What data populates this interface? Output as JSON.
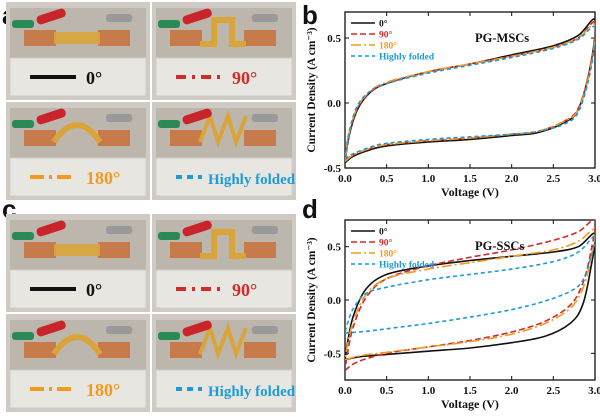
{
  "panels": {
    "a": {
      "letter": "a",
      "photo_labels": [
        "0°",
        "90°",
        "180°",
        "Highly folded"
      ]
    },
    "b": {
      "letter": "b"
    },
    "c": {
      "letter": "c",
      "photo_labels": [
        "0°",
        "90°",
        "180°",
        "Highly folded"
      ]
    },
    "d": {
      "letter": "d"
    }
  },
  "legend_colors": {
    "0°": "#111111",
    "90°": "#d22b2b",
    "180°": "#f29a1e",
    "Highly folded": "#1e9bd7"
  },
  "photo_colors": {
    "stand": "#e8e6e1",
    "copper": "#c77b4a",
    "polyimide": "#d9a53a",
    "clip_red": "#c8242a",
    "clip_green": "#2a8a56",
    "bg": "#cfcac3"
  },
  "chart_data": [
    {
      "type": "line",
      "panel": "b",
      "title": "PG-MSCs",
      "xlabel": "Voltage (V)",
      "ylabel": "Current Density (A cm⁻³)",
      "xlim": [
        0.0,
        3.0
      ],
      "ylim": [
        -0.5,
        0.7
      ],
      "xticks": [
        "0.0",
        "0.5",
        "1.0",
        "1.5",
        "2.0",
        "2.5",
        "3.0"
      ],
      "yticks": [
        "-0.5",
        "0.0",
        "0.5"
      ],
      "legend_position": "top-left",
      "series": [
        {
          "name": "0°",
          "color": "#111111",
          "dash": "solid",
          "forward": [
            [
              0.0,
              -0.46
            ],
            [
              0.1,
              -0.41
            ],
            [
              0.3,
              -0.36
            ],
            [
              0.5,
              -0.33
            ],
            [
              1.0,
              -0.3
            ],
            [
              1.5,
              -0.28
            ],
            [
              2.0,
              -0.25
            ],
            [
              2.3,
              -0.23
            ],
            [
              2.6,
              -0.16
            ],
            [
              2.8,
              -0.05
            ],
            [
              2.95,
              0.3
            ],
            [
              3.0,
              0.64
            ]
          ],
          "reverse": [
            [
              3.0,
              0.64
            ],
            [
              2.8,
              0.52
            ],
            [
              2.5,
              0.44
            ],
            [
              2.0,
              0.37
            ],
            [
              1.5,
              0.3
            ],
            [
              1.0,
              0.24
            ],
            [
              0.5,
              0.15
            ],
            [
              0.3,
              0.08
            ],
            [
              0.15,
              -0.05
            ],
            [
              0.05,
              -0.25
            ],
            [
              0.0,
              -0.46
            ]
          ]
        },
        {
          "name": "90°",
          "color": "#d22b2b",
          "dash": "6,3",
          "forward": [
            [
              0.0,
              -0.44
            ],
            [
              0.1,
              -0.4
            ],
            [
              0.3,
              -0.35
            ],
            [
              0.5,
              -0.32
            ],
            [
              1.0,
              -0.29
            ],
            [
              1.5,
              -0.27
            ],
            [
              2.0,
              -0.24
            ],
            [
              2.3,
              -0.22
            ],
            [
              2.6,
              -0.15
            ],
            [
              2.8,
              -0.04
            ],
            [
              2.95,
              0.3
            ],
            [
              3.0,
              0.62
            ]
          ],
          "reverse": [
            [
              3.0,
              0.62
            ],
            [
              2.8,
              0.5
            ],
            [
              2.5,
              0.43
            ],
            [
              2.0,
              0.36
            ],
            [
              1.5,
              0.3
            ],
            [
              1.0,
              0.24
            ],
            [
              0.5,
              0.15
            ],
            [
              0.3,
              0.08
            ],
            [
              0.15,
              -0.04
            ],
            [
              0.05,
              -0.24
            ],
            [
              0.0,
              -0.44
            ]
          ]
        },
        {
          "name": "180°",
          "color": "#f29a1e",
          "dash": "10,3,2,3",
          "forward": [
            [
              0.0,
              -0.45
            ],
            [
              0.1,
              -0.4
            ],
            [
              0.3,
              -0.35
            ],
            [
              0.5,
              -0.32
            ],
            [
              1.0,
              -0.29
            ],
            [
              1.5,
              -0.27
            ],
            [
              2.0,
              -0.24
            ],
            [
              2.3,
              -0.22
            ],
            [
              2.6,
              -0.15
            ],
            [
              2.8,
              -0.05
            ],
            [
              2.95,
              0.28
            ],
            [
              3.0,
              0.6
            ]
          ],
          "reverse": [
            [
              3.0,
              0.6
            ],
            [
              2.8,
              0.5
            ],
            [
              2.5,
              0.43
            ],
            [
              2.0,
              0.36
            ],
            [
              1.5,
              0.3
            ],
            [
              1.0,
              0.24
            ],
            [
              0.5,
              0.16
            ],
            [
              0.3,
              0.09
            ],
            [
              0.15,
              -0.03
            ],
            [
              0.05,
              -0.23
            ],
            [
              0.0,
              -0.45
            ]
          ]
        },
        {
          "name": "Highly folded",
          "color": "#1e9bd7",
          "dash": "4,3",
          "forward": [
            [
              0.0,
              -0.43
            ],
            [
              0.1,
              -0.39
            ],
            [
              0.3,
              -0.34
            ],
            [
              0.5,
              -0.31
            ],
            [
              1.0,
              -0.28
            ],
            [
              1.5,
              -0.26
            ],
            [
              2.0,
              -0.24
            ],
            [
              2.3,
              -0.22
            ],
            [
              2.6,
              -0.17
            ],
            [
              2.8,
              -0.07
            ],
            [
              2.95,
              0.26
            ],
            [
              3.0,
              0.58
            ]
          ],
          "reverse": [
            [
              3.0,
              0.58
            ],
            [
              2.8,
              0.49
            ],
            [
              2.5,
              0.42
            ],
            [
              2.0,
              0.35
            ],
            [
              1.5,
              0.29
            ],
            [
              1.0,
              0.23
            ],
            [
              0.5,
              0.15
            ],
            [
              0.3,
              0.09
            ],
            [
              0.15,
              -0.02
            ],
            [
              0.05,
              -0.22
            ],
            [
              0.0,
              -0.43
            ]
          ]
        }
      ]
    },
    {
      "type": "line",
      "panel": "d",
      "title": "PG-SSCs",
      "xlabel": "Voltage (V)",
      "ylabel": "Current Density (A cm⁻³)",
      "xlim": [
        0.0,
        3.0
      ],
      "ylim": [
        -0.75,
        0.75
      ],
      "xticks": [
        "0.0",
        "0.5",
        "1.0",
        "1.5",
        "2.0",
        "2.5",
        "3.0"
      ],
      "yticks": [
        "-0.5",
        "0.0",
        "0.5"
      ],
      "legend_position": "top-left",
      "series": [
        {
          "name": "0°",
          "color": "#111111",
          "dash": "solid",
          "forward": [
            [
              0.0,
              -0.56
            ],
            [
              0.2,
              -0.53
            ],
            [
              0.5,
              -0.51
            ],
            [
              1.0,
              -0.48
            ],
            [
              1.5,
              -0.45
            ],
            [
              2.0,
              -0.4
            ],
            [
              2.4,
              -0.34
            ],
            [
              2.7,
              -0.22
            ],
            [
              2.85,
              -0.05
            ],
            [
              2.95,
              0.3
            ],
            [
              3.0,
              0.62
            ]
          ],
          "reverse": [
            [
              3.0,
              0.62
            ],
            [
              2.8,
              0.5
            ],
            [
              2.5,
              0.45
            ],
            [
              2.0,
              0.41
            ],
            [
              1.5,
              0.37
            ],
            [
              1.0,
              0.32
            ],
            [
              0.5,
              0.24
            ],
            [
              0.25,
              0.1
            ],
            [
              0.1,
              -0.15
            ],
            [
              0.03,
              -0.4
            ],
            [
              0.0,
              -0.56
            ]
          ]
        },
        {
          "name": "90°",
          "color": "#d22b2b",
          "dash": "6,3",
          "forward": [
            [
              0.0,
              -0.66
            ],
            [
              0.15,
              -0.58
            ],
            [
              0.5,
              -0.5
            ],
            [
              1.0,
              -0.44
            ],
            [
              1.5,
              -0.38
            ],
            [
              2.0,
              -0.3
            ],
            [
              2.4,
              -0.2
            ],
            [
              2.7,
              -0.05
            ],
            [
              2.85,
              0.15
            ],
            [
              2.95,
              0.45
            ],
            [
              3.0,
              0.75
            ]
          ],
          "reverse": [
            [
              3.0,
              0.75
            ],
            [
              2.8,
              0.64
            ],
            [
              2.5,
              0.56
            ],
            [
              2.0,
              0.47
            ],
            [
              1.5,
              0.4
            ],
            [
              1.0,
              0.32
            ],
            [
              0.5,
              0.2
            ],
            [
              0.25,
              0.02
            ],
            [
              0.1,
              -0.25
            ],
            [
              0.03,
              -0.5
            ],
            [
              0.0,
              -0.66
            ]
          ]
        },
        {
          "name": "180°",
          "color": "#f29a1e",
          "dash": "10,3,2,3",
          "forward": [
            [
              0.0,
              -0.56
            ],
            [
              0.2,
              -0.52
            ],
            [
              0.5,
              -0.49
            ],
            [
              1.0,
              -0.44
            ],
            [
              1.5,
              -0.39
            ],
            [
              2.0,
              -0.32
            ],
            [
              2.4,
              -0.22
            ],
            [
              2.7,
              -0.08
            ],
            [
              2.85,
              0.1
            ],
            [
              2.95,
              0.38
            ],
            [
              3.0,
              0.66
            ]
          ],
          "reverse": [
            [
              3.0,
              0.66
            ],
            [
              2.8,
              0.55
            ],
            [
              2.5,
              0.47
            ],
            [
              2.0,
              0.41
            ],
            [
              1.5,
              0.35
            ],
            [
              1.0,
              0.29
            ],
            [
              0.5,
              0.2
            ],
            [
              0.25,
              0.05
            ],
            [
              0.1,
              -0.2
            ],
            [
              0.03,
              -0.42
            ],
            [
              0.0,
              -0.56
            ]
          ]
        },
        {
          "name": "Highly folded",
          "color": "#1e9bd7",
          "dash": "4,3",
          "forward": [
            [
              0.0,
              -0.31
            ],
            [
              0.3,
              -0.29
            ],
            [
              0.6,
              -0.26
            ],
            [
              1.0,
              -0.22
            ],
            [
              1.5,
              -0.16
            ],
            [
              2.0,
              -0.09
            ],
            [
              2.4,
              -0.01
            ],
            [
              2.7,
              0.08
            ],
            [
              2.85,
              0.18
            ],
            [
              2.95,
              0.4
            ],
            [
              3.0,
              0.6
            ]
          ],
          "reverse": [
            [
              3.0,
              0.6
            ],
            [
              2.8,
              0.45
            ],
            [
              2.5,
              0.36
            ],
            [
              2.0,
              0.29
            ],
            [
              1.5,
              0.24
            ],
            [
              1.0,
              0.19
            ],
            [
              0.5,
              0.12
            ],
            [
              0.25,
              0.06
            ],
            [
              0.1,
              -0.08
            ],
            [
              0.03,
              -0.22
            ],
            [
              0.0,
              -0.31
            ]
          ]
        }
      ]
    }
  ]
}
